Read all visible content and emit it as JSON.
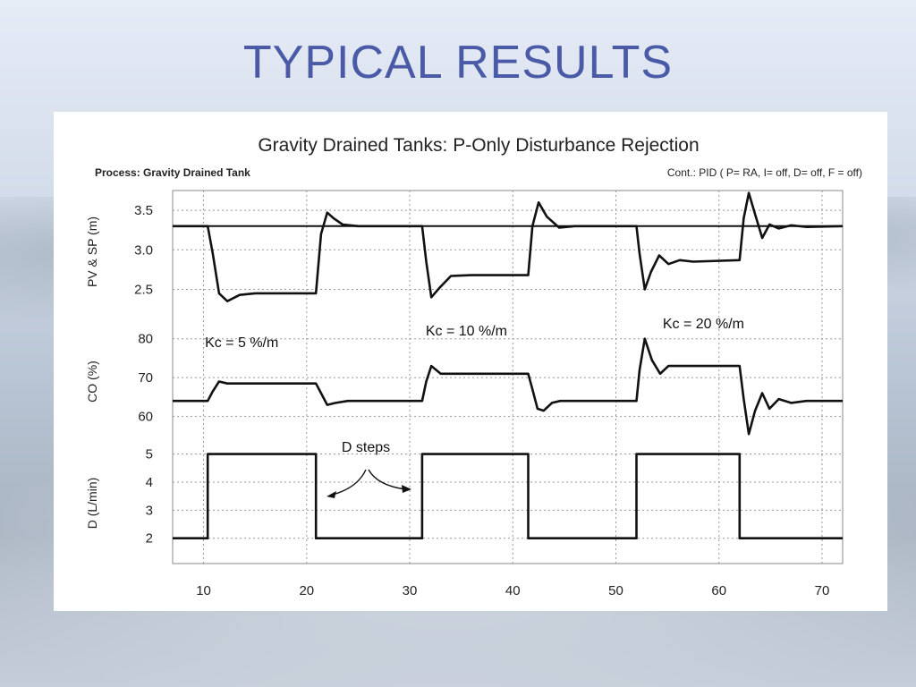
{
  "slide": {
    "title": "TYPICAL RESULTS"
  },
  "chart_data": {
    "type": "line",
    "title": "Gravity Drained Tanks: P-Only Disturbance Rejection",
    "subtitle_left": "Process: Gravity Drained Tank",
    "subtitle_right": "Cont.: PID ( P= RA, I= off, D= off, F = off)",
    "xlim": [
      7,
      72
    ],
    "x_ticks": [
      10,
      20,
      30,
      40,
      50,
      60,
      70
    ],
    "x_tick_labels": [
      "10",
      "20",
      "30",
      "40",
      "50",
      "60",
      "70"
    ],
    "grid": true,
    "panels": [
      {
        "ylabel": "PV & SP (m)",
        "ylim": [
          2.2,
          3.75
        ],
        "y_ticks": [
          2.5,
          3.0,
          3.5
        ],
        "y_tick_labels": [
          "2.5",
          "3.0",
          "3.5"
        ],
        "series": [
          {
            "name": "SP",
            "x": [
              7,
              72
            ],
            "y": [
              3.3,
              3.3
            ]
          },
          {
            "name": "PV",
            "x": [
              7,
              10.4,
              10.9,
              11.5,
              12.3,
              13.5,
              15,
              20.9,
              21.4,
              22,
              22.6,
              23.5,
              25,
              31.2,
              31.6,
              32.1,
              32.9,
              34,
              36,
              41.5,
              41.9,
              42.5,
              43.3,
              44.5,
              46,
              52,
              52.3,
              52.8,
              53.4,
              54.2,
              55.1,
              56.2,
              57.5,
              62,
              62.4,
              62.9,
              63.5,
              64.2,
              64.9,
              65.8,
              67,
              68.5,
              72
            ],
            "y": [
              3.3,
              3.3,
              2.95,
              2.45,
              2.35,
              2.43,
              2.45,
              2.45,
              3.2,
              3.47,
              3.4,
              3.32,
              3.3,
              3.3,
              2.85,
              2.4,
              2.52,
              2.67,
              2.68,
              2.68,
              3.3,
              3.6,
              3.42,
              3.28,
              3.3,
              3.3,
              2.95,
              2.5,
              2.72,
              2.93,
              2.82,
              2.87,
              2.85,
              2.87,
              3.4,
              3.72,
              3.45,
              3.15,
              3.32,
              3.27,
              3.31,
              3.29,
              3.3
            ]
          }
        ],
        "annotations": [
          {
            "text": "Kc = 5 %/m",
            "x": 13.7,
            "y": 84.5
          },
          {
            "text": "Kc = 10 %/m",
            "x": 35.5,
            "y": 84.5
          },
          {
            "text": "Kc = 20 %/m",
            "x": 58.5,
            "y": 84.5
          }
        ]
      },
      {
        "ylabel": "CO (%)",
        "ylim": [
          56,
          82
        ],
        "y_ticks": [
          60,
          70,
          80
        ],
        "y_tick_labels": [
          "60",
          "70",
          "80"
        ],
        "series": [
          {
            "name": "CO",
            "x": [
              7,
              10.4,
              10.9,
              11.5,
              12.3,
              14,
              20.9,
              21.4,
              22,
              22.8,
              24,
              31.2,
              31.6,
              32.1,
              33,
              34.5,
              41.5,
              41.9,
              42.4,
              43,
              43.8,
              44.6,
              46,
              52,
              52.3,
              52.8,
              53.5,
              54.3,
              55.1,
              56.1,
              57.5,
              62,
              62.4,
              62.9,
              63.5,
              64.2,
              64.9,
              65.8,
              67,
              68.5,
              72
            ],
            "y": [
              64,
              64,
              66.5,
              69,
              68.5,
              68.5,
              68.5,
              66,
              63,
              63.5,
              64,
              64,
              69,
              73,
              71,
              71,
              71,
              67,
              62,
              61.5,
              63.5,
              64,
              64,
              64,
              72,
              80,
              74.5,
              71,
              73,
              73,
              73,
              73,
              64.5,
              55.5,
              61.5,
              66,
              62,
              64.5,
              63.5,
              64,
              64
            ]
          }
        ]
      },
      {
        "ylabel": "D (L/min)",
        "ylim": [
          1.1,
          5.4
        ],
        "y_ticks": [
          2,
          3,
          4,
          5
        ],
        "y_tick_labels": [
          "2",
          "3",
          "4",
          "5"
        ],
        "series": [
          {
            "name": "D",
            "x": [
              7,
              10.4,
              10.4,
              20.9,
              20.9,
              31.2,
              31.2,
              41.5,
              41.5,
              52,
              52,
              62,
              62,
              72
            ],
            "y": [
              2,
              2,
              5,
              5,
              2,
              2,
              5,
              5,
              2,
              2,
              5,
              5,
              2,
              2
            ]
          }
        ],
        "annotations": [
          {
            "text": "D steps"
          }
        ]
      }
    ]
  }
}
